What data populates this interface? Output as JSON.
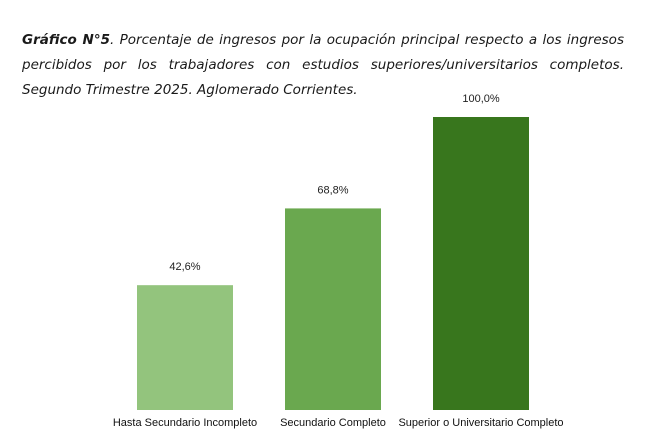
{
  "caption": {
    "lead": "Gráfico N°5",
    "text": ". Porcentaje de ingresos por la ocupación principal respecto a los ingresos percibidos por los trabajadores con estudios superiores/universitarios completos. Segundo Trimestre 2025. Aglomerado Corrientes."
  },
  "chart_data": {
    "type": "bar",
    "categories": [
      "Hasta Secundario Incompleto",
      "Secundario Completo",
      "Superior o Universitario Completo"
    ],
    "values": [
      42.6,
      68.8,
      100.0
    ],
    "value_labels": [
      "42,6%",
      "68,8%",
      "100,0%"
    ],
    "colors": [
      "#93c47d",
      "#6aa84f",
      "#38761d"
    ],
    "ylim": [
      0,
      100
    ],
    "grid": false,
    "legend": "none"
  }
}
